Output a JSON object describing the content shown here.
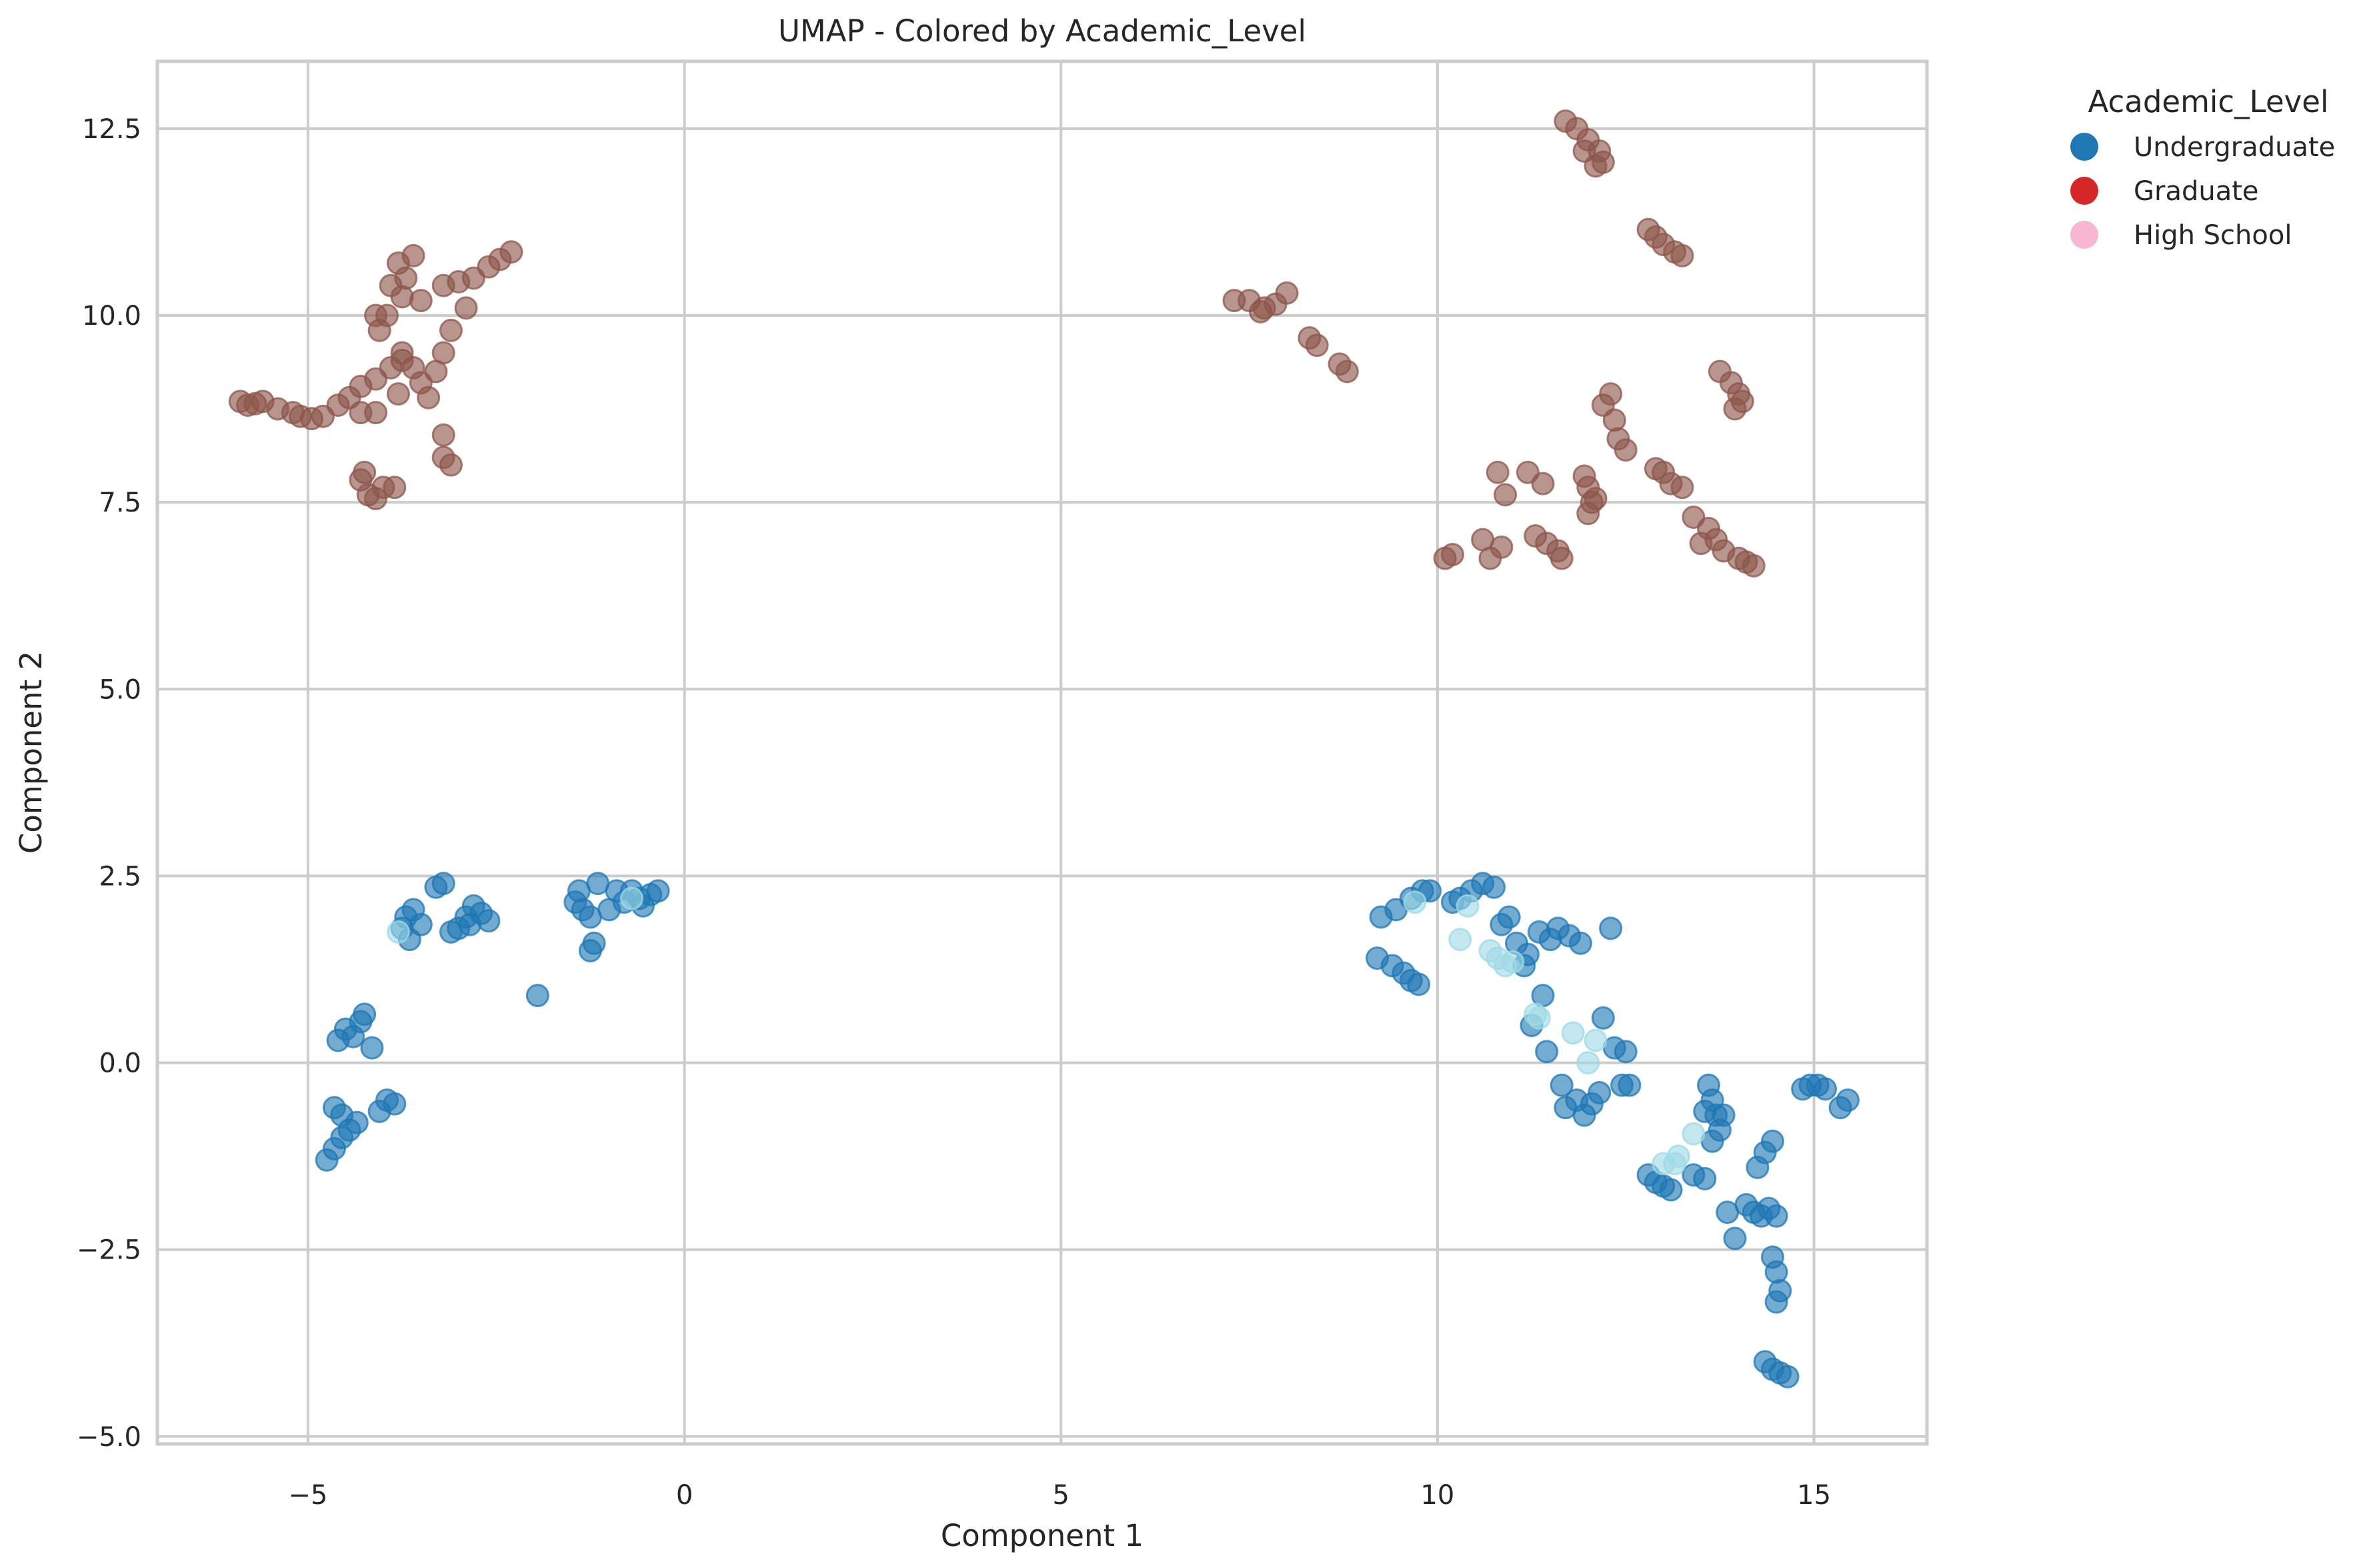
{
  "chart_data": {
    "type": "scatter",
    "title": "UMAP - Colored by Academic_Level",
    "xlabel": "Component 1",
    "ylabel": "Component 2",
    "xlim": [
      -7.0,
      16.5
    ],
    "ylim": [
      -5.1,
      13.4
    ],
    "xticks": [
      -5,
      0,
      5,
      10,
      15
    ],
    "yticks": [
      -5.0,
      -2.5,
      0.0,
      2.5,
      5.0,
      7.5,
      10.0,
      12.5
    ],
    "grid": true,
    "legend": {
      "title": "Academic_Level",
      "placement": "outside-top-right",
      "entries": [
        {
          "label": "Undergraduate",
          "color": "#1f77b4"
        },
        {
          "label": "Graduate",
          "color": "#d62728"
        },
        {
          "label": "High School",
          "color": "#f7b6d2"
        }
      ]
    },
    "series": [
      {
        "color": "#8c564b",
        "points": [
          [
            -5.9,
            8.85
          ],
          [
            -5.8,
            8.8
          ],
          [
            -5.7,
            8.82
          ],
          [
            -5.6,
            8.85
          ],
          [
            -5.4,
            8.75
          ],
          [
            -5.2,
            8.7
          ],
          [
            -5.1,
            8.65
          ],
          [
            -4.95,
            8.62
          ],
          [
            -4.8,
            8.65
          ],
          [
            -4.6,
            8.8
          ],
          [
            -4.45,
            8.9
          ],
          [
            -4.3,
            9.05
          ],
          [
            -4.1,
            9.15
          ],
          [
            -3.9,
            9.3
          ],
          [
            -3.75,
            9.4
          ],
          [
            -3.6,
            9.3
          ],
          [
            -3.5,
            9.1
          ],
          [
            -3.4,
            8.9
          ],
          [
            -3.3,
            9.25
          ],
          [
            -3.2,
            9.5
          ],
          [
            -3.1,
            9.8
          ],
          [
            -2.9,
            10.1
          ],
          [
            -4.3,
            8.7
          ],
          [
            -4.1,
            8.7
          ],
          [
            -3.8,
            8.95
          ],
          [
            -3.8,
            10.7
          ],
          [
            -3.7,
            10.5
          ],
          [
            -3.6,
            10.8
          ],
          [
            -3.9,
            10.4
          ],
          [
            -3.75,
            10.25
          ],
          [
            -3.5,
            10.2
          ],
          [
            -3.95,
            10.0
          ],
          [
            -4.1,
            10.0
          ],
          [
            -4.05,
            9.8
          ],
          [
            -3.75,
            9.5
          ],
          [
            -3.2,
            10.4
          ],
          [
            -3.0,
            10.45
          ],
          [
            -2.8,
            10.5
          ],
          [
            -2.6,
            10.65
          ],
          [
            -2.45,
            10.75
          ],
          [
            -2.3,
            10.85
          ],
          [
            -4.3,
            7.8
          ],
          [
            -4.2,
            7.6
          ],
          [
            -4.1,
            7.55
          ],
          [
            -4.0,
            7.7
          ],
          [
            -3.85,
            7.7
          ],
          [
            -4.25,
            7.9
          ],
          [
            -3.2,
            8.4
          ],
          [
            -3.2,
            8.1
          ],
          [
            -3.1,
            8.0
          ],
          [
            7.3,
            10.2
          ],
          [
            7.5,
            10.2
          ],
          [
            7.7,
            10.1
          ],
          [
            7.85,
            10.15
          ],
          [
            8.0,
            10.3
          ],
          [
            7.65,
            10.05
          ],
          [
            8.3,
            9.7
          ],
          [
            8.4,
            9.6
          ],
          [
            8.7,
            9.35
          ],
          [
            8.8,
            9.25
          ],
          [
            11.7,
            12.6
          ],
          [
            11.85,
            12.5
          ],
          [
            12.0,
            12.35
          ],
          [
            12.15,
            12.2
          ],
          [
            12.1,
            12.0
          ],
          [
            12.2,
            12.05
          ],
          [
            11.95,
            12.2
          ],
          [
            12.8,
            11.15
          ],
          [
            12.9,
            11.05
          ],
          [
            13.0,
            10.95
          ],
          [
            13.15,
            10.85
          ],
          [
            13.25,
            10.8
          ],
          [
            13.75,
            9.25
          ],
          [
            13.9,
            9.1
          ],
          [
            14.0,
            8.95
          ],
          [
            13.95,
            8.75
          ],
          [
            14.05,
            8.85
          ],
          [
            12.2,
            8.8
          ],
          [
            12.3,
            8.95
          ],
          [
            12.35,
            8.6
          ],
          [
            12.4,
            8.35
          ],
          [
            12.5,
            8.2
          ],
          [
            10.1,
            6.75
          ],
          [
            10.2,
            6.8
          ],
          [
            10.6,
            7.0
          ],
          [
            10.7,
            6.75
          ],
          [
            10.85,
            6.9
          ],
          [
            10.8,
            7.9
          ],
          [
            10.9,
            7.6
          ],
          [
            11.2,
            7.9
          ],
          [
            11.4,
            7.75
          ],
          [
            11.3,
            7.05
          ],
          [
            11.45,
            6.95
          ],
          [
            11.6,
            6.85
          ],
          [
            11.65,
            6.75
          ],
          [
            11.95,
            7.85
          ],
          [
            12.0,
            7.7
          ],
          [
            12.05,
            7.5
          ],
          [
            12.1,
            7.55
          ],
          [
            12.0,
            7.35
          ],
          [
            12.9,
            7.95
          ],
          [
            13.0,
            7.9
          ],
          [
            13.1,
            7.75
          ],
          [
            13.25,
            7.7
          ],
          [
            13.4,
            7.3
          ],
          [
            13.6,
            7.15
          ],
          [
            13.7,
            7.0
          ],
          [
            13.8,
            6.85
          ],
          [
            14.0,
            6.75
          ],
          [
            14.1,
            6.7
          ],
          [
            14.2,
            6.65
          ],
          [
            13.5,
            6.95
          ]
        ]
      },
      {
        "color": "#1f77b4",
        "points": [
          [
            -3.7,
            1.95
          ],
          [
            -3.6,
            2.05
          ],
          [
            -3.75,
            1.8
          ],
          [
            -3.65,
            1.65
          ],
          [
            -3.5,
            1.85
          ],
          [
            -3.3,
            2.35
          ],
          [
            -3.2,
            2.4
          ],
          [
            -3.1,
            1.75
          ],
          [
            -3.0,
            1.8
          ],
          [
            -2.9,
            1.95
          ],
          [
            -2.8,
            2.1
          ],
          [
            -2.7,
            2.0
          ],
          [
            -2.6,
            1.9
          ],
          [
            -2.85,
            1.85
          ],
          [
            -1.95,
            0.9
          ],
          [
            -1.45,
            2.15
          ],
          [
            -1.35,
            2.05
          ],
          [
            -1.25,
            1.95
          ],
          [
            -1.15,
            2.4
          ],
          [
            -1.2,
            1.6
          ],
          [
            -1.25,
            1.5
          ],
          [
            -1.0,
            2.05
          ],
          [
            -0.9,
            2.3
          ],
          [
            -0.8,
            2.15
          ],
          [
            -0.7,
            2.3
          ],
          [
            -0.6,
            2.2
          ],
          [
            -0.45,
            2.25
          ],
          [
            -0.35,
            2.3
          ],
          [
            -1.4,
            2.3
          ],
          [
            -0.55,
            2.1
          ],
          [
            -4.6,
            0.3
          ],
          [
            -4.5,
            0.45
          ],
          [
            -4.4,
            0.35
          ],
          [
            -4.3,
            0.55
          ],
          [
            -4.25,
            0.65
          ],
          [
            -4.15,
            0.2
          ],
          [
            -4.75,
            -1.3
          ],
          [
            -4.65,
            -1.15
          ],
          [
            -4.55,
            -1.0
          ],
          [
            -4.45,
            -0.9
          ],
          [
            -4.35,
            -0.8
          ],
          [
            -4.65,
            -0.6
          ],
          [
            -4.55,
            -0.7
          ],
          [
            -4.05,
            -0.65
          ],
          [
            -3.95,
            -0.5
          ],
          [
            -3.85,
            -0.55
          ],
          [
            9.2,
            1.4
          ],
          [
            9.4,
            1.3
          ],
          [
            9.55,
            1.2
          ],
          [
            9.65,
            1.1
          ],
          [
            9.75,
            1.05
          ],
          [
            9.25,
            1.95
          ],
          [
            9.45,
            2.05
          ],
          [
            9.65,
            2.2
          ],
          [
            9.8,
            2.3
          ],
          [
            9.9,
            2.3
          ],
          [
            10.2,
            2.15
          ],
          [
            10.3,
            2.2
          ],
          [
            10.45,
            2.3
          ],
          [
            10.6,
            2.4
          ],
          [
            10.75,
            2.35
          ],
          [
            10.85,
            1.85
          ],
          [
            10.95,
            1.95
          ],
          [
            11.05,
            1.6
          ],
          [
            11.2,
            1.45
          ],
          [
            11.35,
            1.75
          ],
          [
            11.5,
            1.65
          ],
          [
            11.6,
            1.8
          ],
          [
            11.75,
            1.7
          ],
          [
            11.9,
            1.6
          ],
          [
            11.15,
            1.3
          ],
          [
            11.25,
            0.5
          ],
          [
            11.4,
            0.9
          ],
          [
            11.45,
            0.15
          ],
          [
            11.65,
            -0.3
          ],
          [
            11.7,
            -0.6
          ],
          [
            11.85,
            -0.5
          ],
          [
            11.95,
            -0.7
          ],
          [
            12.05,
            -0.55
          ],
          [
            12.15,
            -0.4
          ],
          [
            12.2,
            0.6
          ],
          [
            12.35,
            0.2
          ],
          [
            12.5,
            0.15
          ],
          [
            12.45,
            -0.3
          ],
          [
            12.55,
            -0.3
          ],
          [
            12.3,
            1.8
          ],
          [
            12.8,
            -1.5
          ],
          [
            12.9,
            -1.6
          ],
          [
            13.0,
            -1.65
          ],
          [
            13.1,
            -1.7
          ],
          [
            13.4,
            -1.5
          ],
          [
            13.55,
            -1.55
          ],
          [
            13.6,
            -0.3
          ],
          [
            13.65,
            -0.5
          ],
          [
            13.55,
            -0.65
          ],
          [
            13.7,
            -0.7
          ],
          [
            13.8,
            -0.7
          ],
          [
            13.75,
            -0.9
          ],
          [
            13.65,
            -1.05
          ],
          [
            13.85,
            -2.0
          ],
          [
            13.95,
            -2.35
          ],
          [
            14.1,
            -1.9
          ],
          [
            14.2,
            -2.0
          ],
          [
            14.3,
            -2.05
          ],
          [
            14.4,
            -1.95
          ],
          [
            14.5,
            -2.05
          ],
          [
            14.25,
            -1.4
          ],
          [
            14.35,
            -1.2
          ],
          [
            14.45,
            -1.05
          ],
          [
            14.45,
            -2.6
          ],
          [
            14.5,
            -2.8
          ],
          [
            14.55,
            -3.05
          ],
          [
            14.5,
            -3.2
          ],
          [
            14.35,
            -4.0
          ],
          [
            14.45,
            -4.1
          ],
          [
            14.55,
            -4.15
          ],
          [
            14.65,
            -4.2
          ],
          [
            14.85,
            -0.35
          ],
          [
            14.95,
            -0.3
          ],
          [
            15.05,
            -0.3
          ],
          [
            15.15,
            -0.35
          ],
          [
            15.35,
            -0.6
          ],
          [
            15.45,
            -0.5
          ]
        ]
      },
      {
        "color": "#9edae5",
        "points": [
          [
            -3.8,
            1.75
          ],
          [
            -0.7,
            2.2
          ],
          [
            9.7,
            2.15
          ],
          [
            10.4,
            2.1
          ],
          [
            10.7,
            1.5
          ],
          [
            10.8,
            1.4
          ],
          [
            10.9,
            1.3
          ],
          [
            11.0,
            1.35
          ],
          [
            11.3,
            0.65
          ],
          [
            11.35,
            0.6
          ],
          [
            11.8,
            0.4
          ],
          [
            12.0,
            0.0
          ],
          [
            12.1,
            0.3
          ],
          [
            13.0,
            -1.35
          ],
          [
            13.2,
            -1.25
          ],
          [
            13.4,
            -0.95
          ],
          [
            13.15,
            -1.35
          ],
          [
            10.3,
            1.65
          ]
        ]
      }
    ]
  }
}
